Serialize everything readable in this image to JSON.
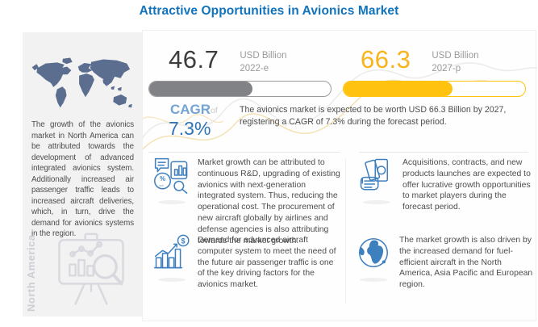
{
  "title": "Attractive Opportunities in Avionics Market",
  "colors": {
    "title_blue": "#1173BC",
    "accent_blue": "#2E75B6",
    "light_blue": "#74A3D4",
    "icon_blue": "#3E7FBE",
    "gray_bar": "#808285",
    "yellow_bar": "#FFC20E",
    "yellow_text": "#F9B31B",
    "dark_value": "#3D3D3D",
    "body_text": "#4D4D4D",
    "muted_gray": "#9B9B9B",
    "sidebar_bg": "#F2F2F3",
    "map_slate": "#5C6E90"
  },
  "sidebar": {
    "region_label": "North America",
    "paragraph": "The growth of the avionics market in North America can be attributed towards the development of advanced integrated avionics system. Additionally increased air passenger traffic leads to increased aircraft deliveries, which, in turn, drive the demand for avionics systems in the region.",
    "map_icon": "world-map",
    "board_icon": "presentation-chart-magnifier-icon"
  },
  "stats": [
    {
      "value": "46.7",
      "unit": "USD Billion",
      "period": "2022-e",
      "fill_percent": 57
    },
    {
      "value": "66.3",
      "unit": "USD Billion",
      "period": "2027-p",
      "fill_percent": 60
    }
  ],
  "cagr": {
    "label": "CAGR",
    "of": "of",
    "value": "7.3%",
    "description": "The avionics market is expected to be worth USD 66.3 Billion  by 2027, registering a CAGR of 7.3% during the forecast period."
  },
  "insights": [
    {
      "icon": "analysis-percent-magnifier-icon",
      "text": "Market growth can be attributed to continuous R&D, upgrading of existing avionics with next-generation integrated system. Thus, reducing the operational cost. The procurement of new aircraft globally by airlines and defense agencies is also attributing towards the market growth."
    },
    {
      "icon": "growth-chart-dollar-icon",
      "text": "Demand for advanced aircraft computer system to meet the need of the future air passenger traffic is one of the key driving factors for the avionics market."
    },
    {
      "icon": "money-in-hand-icon",
      "text": "Acquisitions, contracts, and new products launches are expected to offer lucrative growth opportunities to market players during the forecast period."
    },
    {
      "icon": "globe-icon",
      "text": "The market growth is also driven by the increased demand for fuel-efficient aircraft in the North America, Asia Pacific and European region."
    }
  ],
  "chart_data": {
    "type": "bar",
    "title": "Attractive Opportunities in Avionics Market",
    "categories": [
      "2022-e",
      "2027-p"
    ],
    "values": [
      46.7,
      66.3
    ],
    "unit": "USD Billion",
    "annotations": [
      "CAGR of 7.3% during the forecast period",
      "Market expected to be worth USD 66.3 Billion by 2027"
    ],
    "series_colors": [
      "#808285",
      "#FFC20E"
    ],
    "legend_position": "none",
    "grid": false
  }
}
